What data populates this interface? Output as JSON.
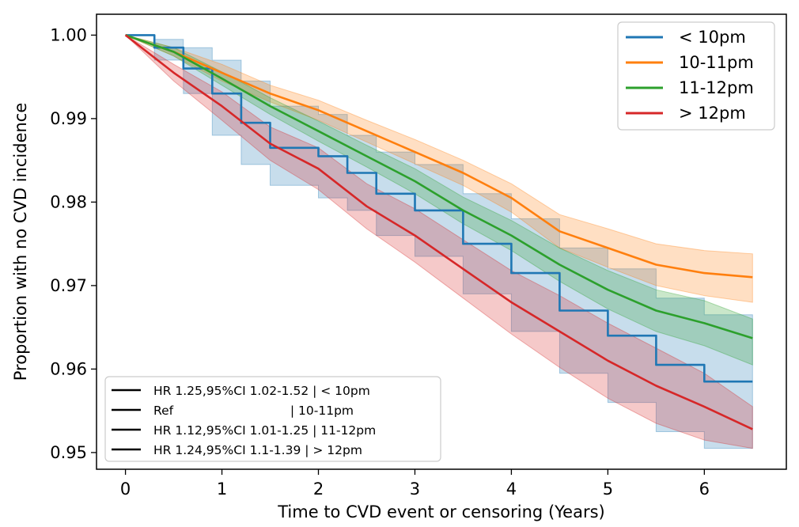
{
  "chart_data": {
    "type": "line",
    "subtype": "kaplan-meier survival curves with confidence bands",
    "xlabel": "Time to CVD event or censoring (Years)",
    "ylabel": "Proportion with no CVD incidence",
    "xlim": [
      -0.3,
      6.85
    ],
    "ylim": [
      0.948,
      1.0025
    ],
    "xticks": [
      0,
      1,
      2,
      3,
      4,
      5,
      6
    ],
    "xtick_labels": [
      "0",
      "1",
      "2",
      "3",
      "4",
      "5",
      "6"
    ],
    "yticks": [
      0.95,
      0.96,
      0.97,
      0.98,
      0.99,
      1.0
    ],
    "ytick_labels": [
      "0.95",
      "0.96",
      "0.97",
      "0.98",
      "0.99",
      "1.00"
    ],
    "grid": false,
    "legend_position": "top-right",
    "series": [
      {
        "name": "< 10pm",
        "color": "#1f77b4",
        "step": true,
        "x": [
          0,
          0.3,
          0.6,
          0.9,
          1.2,
          1.5,
          2.0,
          2.3,
          2.6,
          3.0,
          3.5,
          4.0,
          4.5,
          5.0,
          5.5,
          6.0,
          6.5
        ],
        "y": [
          1.0,
          0.9985,
          0.996,
          0.993,
          0.9895,
          0.9865,
          0.9855,
          0.9835,
          0.981,
          0.979,
          0.975,
          0.9715,
          0.967,
          0.964,
          0.9605,
          0.9585,
          0.9585
        ],
        "lower": [
          1.0,
          0.997,
          0.993,
          0.988,
          0.9845,
          0.982,
          0.9805,
          0.979,
          0.976,
          0.9735,
          0.969,
          0.9645,
          0.9595,
          0.956,
          0.9525,
          0.9505,
          0.9505
        ],
        "upper": [
          1.0,
          0.9995,
          0.9985,
          0.997,
          0.9945,
          0.9915,
          0.9905,
          0.988,
          0.986,
          0.9845,
          0.981,
          0.978,
          0.9745,
          0.972,
          0.9685,
          0.9665,
          0.9665
        ]
      },
      {
        "name": "10-11pm",
        "color": "#ff7f0e",
        "step": false,
        "x": [
          0,
          0.5,
          1.0,
          1.5,
          2.0,
          2.5,
          3.0,
          3.5,
          4.0,
          4.5,
          5.0,
          5.5,
          6.0,
          6.5
        ],
        "y": [
          1.0,
          0.998,
          0.9955,
          0.993,
          0.991,
          0.9885,
          0.986,
          0.9835,
          0.9805,
          0.9765,
          0.9745,
          0.9725,
          0.9715,
          0.971
        ],
        "lower": [
          1.0,
          0.9975,
          0.9945,
          0.992,
          0.9898,
          0.9872,
          0.9846,
          0.982,
          0.9788,
          0.9745,
          0.9722,
          0.97,
          0.9688,
          0.968
        ],
        "upper": [
          1.0,
          0.9985,
          0.9965,
          0.994,
          0.9922,
          0.9898,
          0.9875,
          0.985,
          0.9822,
          0.9785,
          0.9768,
          0.975,
          0.9742,
          0.9738
        ]
      },
      {
        "name": "11-12pm",
        "color": "#2ca02c",
        "step": false,
        "x": [
          0,
          0.5,
          1.0,
          1.5,
          2.0,
          2.5,
          3.0,
          3.5,
          4.0,
          4.5,
          5.0,
          5.5,
          6.0,
          6.5
        ],
        "y": [
          1.0,
          0.998,
          0.9948,
          0.9915,
          0.9885,
          0.9855,
          0.9825,
          0.979,
          0.976,
          0.9725,
          0.9695,
          0.967,
          0.9655,
          0.9637
        ],
        "lower": [
          1.0,
          0.9975,
          0.994,
          0.9905,
          0.9873,
          0.9842,
          0.981,
          0.9774,
          0.9742,
          0.9705,
          0.9672,
          0.9645,
          0.9628,
          0.9605
        ],
        "upper": [
          1.0,
          0.9985,
          0.9956,
          0.9925,
          0.9897,
          0.9868,
          0.984,
          0.9806,
          0.9778,
          0.9745,
          0.9718,
          0.9695,
          0.9682,
          0.966
        ]
      },
      {
        "name": "> 12pm",
        "color": "#d62728",
        "step": false,
        "x": [
          0,
          0.5,
          1.0,
          1.5,
          2.0,
          2.5,
          3.0,
          3.5,
          4.0,
          4.5,
          5.0,
          5.5,
          6.0,
          6.5
        ],
        "y": [
          1.0,
          0.9955,
          0.9915,
          0.987,
          0.984,
          0.9795,
          0.976,
          0.972,
          0.968,
          0.9645,
          0.961,
          0.958,
          0.9555,
          0.9528
        ],
        "lower": [
          1.0,
          0.9945,
          0.9898,
          0.985,
          0.9815,
          0.9768,
          0.9728,
          0.9685,
          0.9642,
          0.9602,
          0.9565,
          0.9535,
          0.9515,
          0.9505
        ],
        "upper": [
          1.0,
          0.9965,
          0.9932,
          0.989,
          0.9865,
          0.9822,
          0.9792,
          0.9755,
          0.9718,
          0.9688,
          0.9655,
          0.9625,
          0.9595,
          0.9555
        ]
      }
    ],
    "hr_annotations": [
      {
        "text": "HR 1.25,95%CI 1.02-1.52 | < 10pm"
      },
      {
        "text": "Ref                              | 10-11pm"
      },
      {
        "text": "HR 1.12,95%CI 1.01-1.25 | 11-12pm"
      },
      {
        "text": "HR 1.24,95%CI 1.1-1.39 | > 12pm"
      }
    ]
  }
}
